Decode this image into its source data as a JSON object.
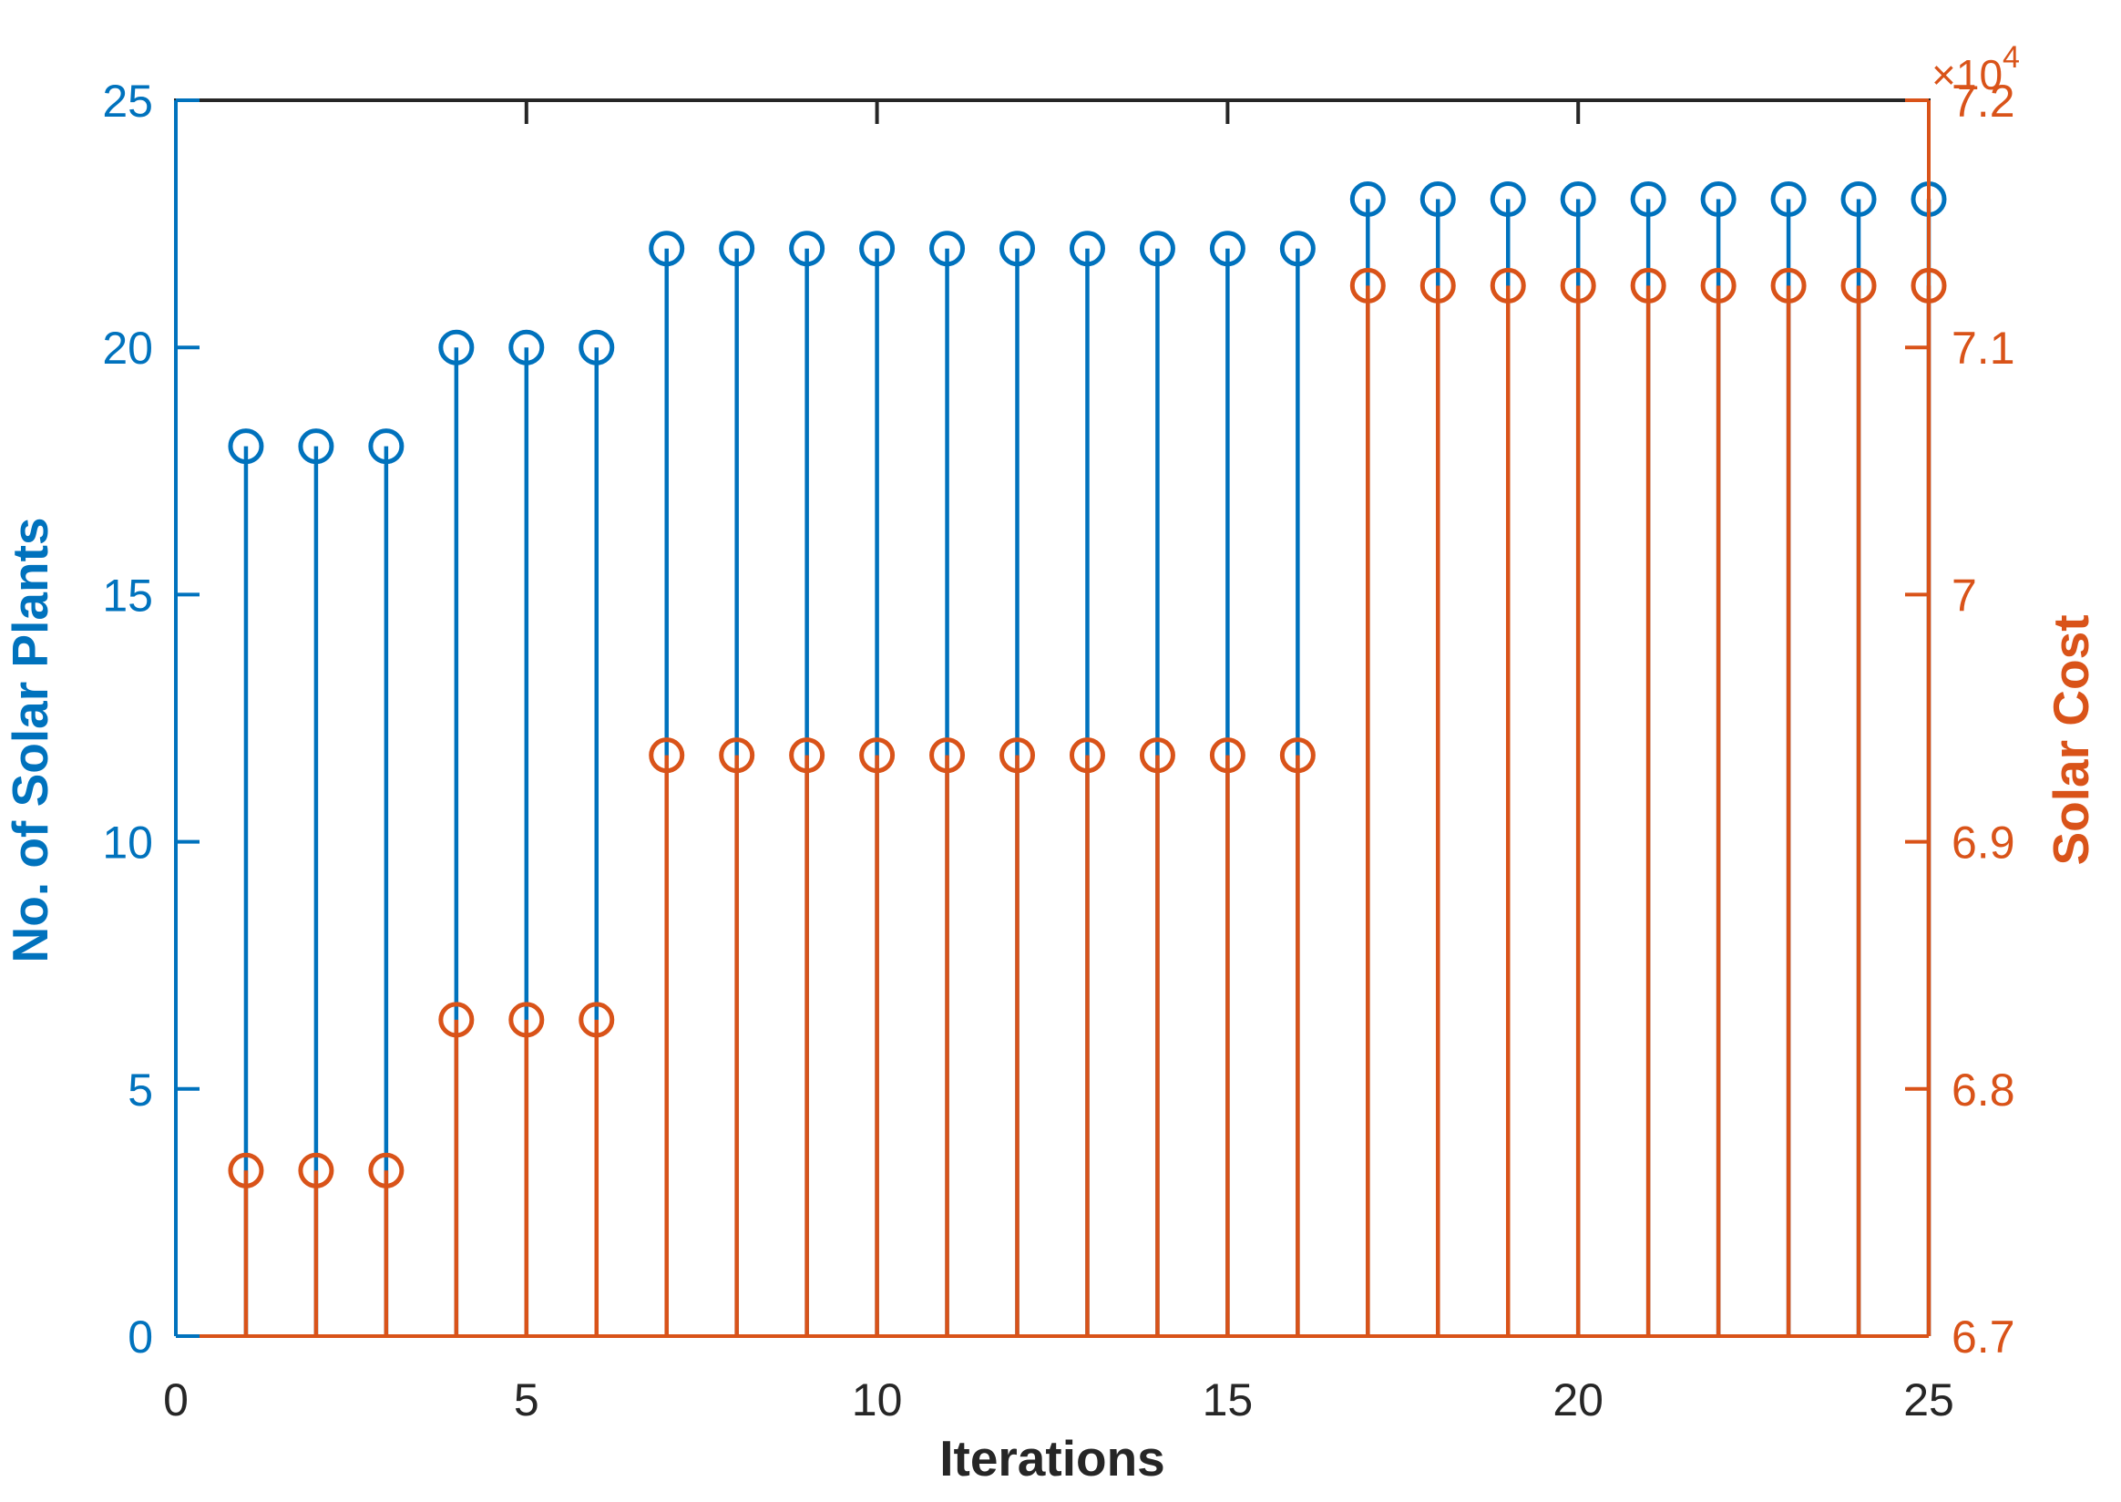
{
  "figure": {
    "background": "#ffffff",
    "axis_text_color": "#262626",
    "left_color": "#0072BD",
    "right_color": "#D95319"
  },
  "chart_data": {
    "type": "stem",
    "title": "",
    "x": [
      1,
      2,
      3,
      4,
      5,
      6,
      7,
      8,
      9,
      10,
      11,
      12,
      13,
      14,
      15,
      16,
      17,
      18,
      19,
      20,
      21,
      22,
      23,
      24,
      25
    ],
    "series": [
      {
        "name": "No. of Solar Plants",
        "axis": "left",
        "color": "#0072BD",
        "marker": "circle",
        "values": [
          18,
          18,
          18,
          20,
          20,
          20,
          22,
          22,
          22,
          22,
          22,
          22,
          22,
          22,
          22,
          22,
          23,
          23,
          23,
          23,
          23,
          23,
          23,
          23,
          23
        ]
      },
      {
        "name": "Solar Cost",
        "axis": "right",
        "color": "#D95319",
        "marker": "circle",
        "values": [
          67670,
          67670,
          67670,
          68280,
          68280,
          68280,
          69350,
          69350,
          69350,
          69350,
          69350,
          69350,
          69350,
          69350,
          69350,
          69350,
          71250,
          71250,
          71250,
          71250,
          71250,
          71250,
          71250,
          71250,
          71250
        ]
      }
    ],
    "x_axis": {
      "label": "Iterations",
      "range": [
        0,
        25
      ],
      "ticks": [
        0,
        5,
        10,
        15,
        20,
        25
      ],
      "tick_labels": [
        "0",
        "5",
        "10",
        "15",
        "20",
        "25"
      ]
    },
    "y_axis_left": {
      "label": "No. of Solar Plants",
      "range": [
        0,
        25
      ],
      "ticks": [
        0,
        5,
        10,
        15,
        20,
        25
      ],
      "tick_labels": [
        "0",
        "5",
        "10",
        "15",
        "20",
        "25"
      ],
      "color": "#0072BD"
    },
    "y_axis_right": {
      "label": "Solar Cost",
      "range": [
        67000,
        72000
      ],
      "ticks": [
        67000,
        68000,
        69000,
        70000,
        71000,
        72000
      ],
      "tick_labels": [
        "6.7",
        "6.8",
        "6.9",
        "7",
        "7.1",
        "7.2"
      ],
      "exponent_text": "×10",
      "exponent_power": "4",
      "color": "#D95319"
    },
    "legend": "none",
    "grid": false,
    "baseline_value": 0
  }
}
